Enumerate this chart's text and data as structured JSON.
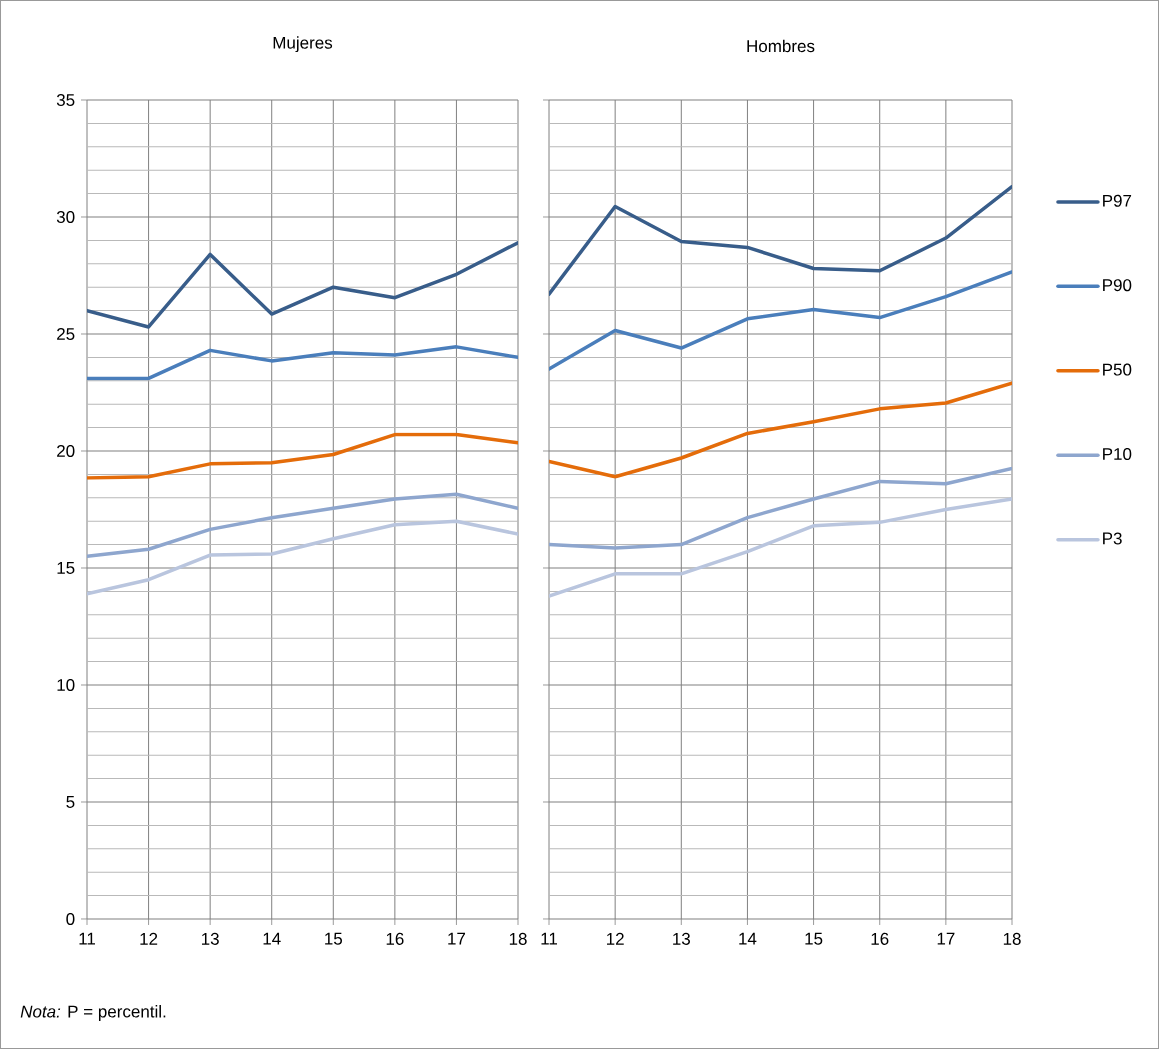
{
  "chart_data": [
    {
      "type": "line",
      "title": "Mujeres",
      "x": [
        11,
        12,
        13,
        14,
        15,
        16,
        17,
        18
      ],
      "xlim": [
        11,
        18
      ],
      "xticks": [
        11,
        12,
        13,
        14,
        15,
        16,
        17,
        18
      ],
      "ylim": [
        0,
        35
      ],
      "yticks": [
        0,
        5,
        10,
        15,
        20,
        25,
        30,
        35
      ],
      "grid": true,
      "legend": false,
      "annotations": [
        "*Nota:* P = percentil."
      ],
      "series": [
        {
          "color": "#385d8a",
          "values": [
            26.0,
            25.3,
            28.4,
            25.85,
            27.0,
            26.55,
            27.55,
            28.9
          ]
        },
        {
          "color": "#4a7ebb",
          "values": [
            23.1,
            23.1,
            24.3,
            23.85,
            24.2,
            24.1,
            24.45,
            24.0
          ]
        },
        {
          "color": "#e46c0a",
          "values": [
            18.85,
            18.9,
            19.45,
            19.5,
            19.85,
            20.7,
            20.7,
            20.35
          ]
        },
        {
          "color": "#8ea6ce",
          "values": [
            15.5,
            15.8,
            16.65,
            17.15,
            17.55,
            17.95,
            18.15,
            17.55
          ]
        },
        {
          "color": "#b9c5de",
          "values": [
            13.9,
            14.5,
            15.55,
            15.6,
            16.25,
            16.85,
            17.0,
            16.45
          ]
        }
      ]
    },
    {
      "type": "line",
      "title": "Hombres",
      "x": [
        11,
        12,
        13,
        14,
        15,
        16,
        17,
        18
      ],
      "xlim": [
        11,
        18
      ],
      "xticks": [
        11,
        12,
        13,
        14,
        15,
        16,
        17,
        18
      ],
      "ylim": [
        0,
        35
      ],
      "yticks": [
        0,
        5,
        10,
        15,
        20,
        25,
        30,
        35
      ],
      "grid": true,
      "legend": "right",
      "tick_labels": "x",
      "series": [
        {
          "name": "P97",
          "color": "#385d8a",
          "values": [
            26.7,
            30.45,
            28.95,
            28.7,
            27.8,
            27.7,
            29.1,
            31.3
          ]
        },
        {
          "name": "P90",
          "color": "#4a7ebb",
          "values": [
            23.5,
            25.15,
            24.4,
            25.65,
            26.05,
            25.7,
            26.6,
            27.65
          ]
        },
        {
          "name": "P50",
          "color": "#e46c0a",
          "values": [
            19.55,
            18.9,
            19.7,
            20.75,
            21.25,
            21.8,
            22.05,
            22.9
          ]
        },
        {
          "name": "P10",
          "color": "#8ea6ce",
          "values": [
            16.0,
            15.85,
            16.0,
            17.15,
            17.95,
            18.7,
            18.6,
            19.25
          ]
        },
        {
          "name": "P3",
          "color": "#b9c5de",
          "values": [
            13.8,
            14.75,
            14.75,
            15.7,
            16.8,
            16.95,
            17.5,
            17.95
          ]
        }
      ]
    }
  ]
}
